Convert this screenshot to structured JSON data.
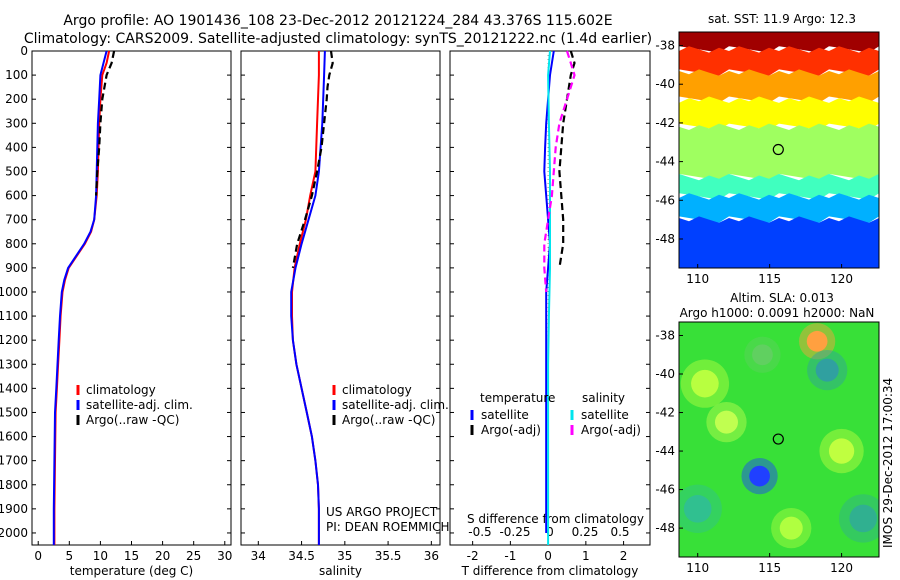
{
  "header": {
    "title_line1": "Argo profile: AO 1901436_108 23-Dec-2012 20121224_284 43.376S 115.602E",
    "title_line2": "Climatology: CARS2009. Satellite-adjusted climatology: synTS_20121222.nc (1.4d earlier)"
  },
  "colors": {
    "climatology": "#ff0000",
    "satellite": "#0000ff",
    "argo": "#000000",
    "salinity_satellite": "#00e5ee",
    "salinity_argo": "#ff00ff"
  },
  "depth_axis": {
    "ylim": [
      0,
      2050
    ],
    "ticks": [
      "0",
      "100",
      "200",
      "300",
      "400",
      "500",
      "600",
      "700",
      "800",
      "900",
      "1000",
      "1100",
      "1200",
      "1300",
      "1400",
      "1500",
      "1600",
      "1700",
      "1800",
      "1900",
      "2000"
    ]
  },
  "credits": {
    "project": "US ARGO PROJECT",
    "pi": "PI: DEAN ROEMMICH",
    "timestamp": "IMOS 29-Dec-2012 17:00:34"
  },
  "chart_data": [
    {
      "type": "line",
      "xlabel": "temperature (deg C)",
      "xlim": [
        -1,
        31
      ],
      "xticks": [
        "0",
        "5",
        "10",
        "15",
        "20",
        "25",
        "30"
      ],
      "legend": {
        "placement": "lower-center",
        "entries": [
          "climatology",
          "satellite-adj. clim.",
          "Argo(..raw -QC)"
        ]
      },
      "series": [
        {
          "name": "climatology",
          "color": "#ff0000",
          "x": [
            11.4,
            11.0,
            10.3,
            10.0,
            9.8,
            9.7,
            9.6,
            9.4,
            9.0,
            8.5,
            7.5,
            6.2,
            4.9,
            4.3,
            3.9,
            3.6,
            3.4,
            3.2,
            3.0,
            2.8,
            2.7,
            2.6,
            2.6
          ],
          "depth": [
            0,
            50,
            100,
            200,
            300,
            400,
            500,
            600,
            700,
            750,
            800,
            850,
            900,
            950,
            1000,
            1100,
            1200,
            1300,
            1400,
            1500,
            1700,
            1900,
            2050
          ]
        },
        {
          "name": "satellite-adj. clim.",
          "color": "#0000ff",
          "x": [
            11.0,
            10.5,
            10.0,
            9.8,
            9.6,
            9.5,
            9.4,
            9.3,
            9.0,
            8.4,
            7.4,
            6.1,
            4.8,
            4.2,
            3.8,
            3.5,
            3.3,
            3.1,
            2.9,
            2.7,
            2.6,
            2.5,
            2.5
          ],
          "depth": [
            0,
            50,
            100,
            200,
            300,
            400,
            500,
            600,
            700,
            750,
            800,
            850,
            900,
            950,
            1000,
            1100,
            1200,
            1300,
            1400,
            1500,
            1700,
            1900,
            2050
          ]
        },
        {
          "name": "Argo(..raw -QC)",
          "color": "#000000",
          "dashed": true,
          "x": [
            12.2,
            11.8,
            11.0,
            10.3,
            10.0,
            9.8,
            9.5,
            9.3
          ],
          "depth": [
            0,
            50,
            100,
            200,
            300,
            400,
            500,
            600
          ]
        }
      ]
    },
    {
      "type": "line",
      "xlabel": "salinity",
      "xlim": [
        33.8,
        36.1
      ],
      "xticks": [
        "34",
        "34.5",
        "35",
        "35.5",
        "36"
      ],
      "legend": {
        "placement": "lower-right",
        "entries": [
          "climatology",
          "satellite-adj. clim.",
          "Argo(..raw -QC)"
        ]
      },
      "series": [
        {
          "name": "climatology",
          "color": "#ff0000",
          "x": [
            34.7,
            34.7,
            34.68,
            34.66,
            34.6,
            34.55,
            34.48,
            34.42,
            34.39,
            34.39,
            34.4,
            34.44,
            34.5,
            34.56,
            34.62,
            34.66,
            34.69,
            34.7,
            34.7
          ],
          "depth": [
            0,
            100,
            300,
            500,
            600,
            700,
            800,
            900,
            1000,
            1100,
            1200,
            1300,
            1400,
            1500,
            1600,
            1700,
            1800,
            1900,
            2050
          ]
        },
        {
          "name": "satellite-adj. clim.",
          "color": "#0000ff",
          "x": [
            34.77,
            34.76,
            34.74,
            34.7,
            34.66,
            34.58,
            34.5,
            34.43,
            34.38,
            34.38,
            34.4,
            34.44,
            34.5,
            34.56,
            34.62,
            34.66,
            34.69,
            34.7,
            34.7
          ],
          "depth": [
            0,
            100,
            300,
            500,
            600,
            700,
            800,
            900,
            1000,
            1100,
            1200,
            1300,
            1400,
            1500,
            1600,
            1700,
            1800,
            1900,
            2050
          ]
        },
        {
          "name": "Argo(..raw -QC)",
          "color": "#000000",
          "dashed": true,
          "x": [
            34.84,
            34.86,
            34.82,
            34.8,
            34.79,
            34.76,
            34.73,
            34.68,
            34.62,
            34.54,
            34.45,
            34.4
          ],
          "depth": [
            0,
            50,
            100,
            150,
            200,
            300,
            400,
            500,
            600,
            700,
            800,
            900
          ]
        }
      ]
    },
    {
      "type": "line",
      "xlabel": "T difference from climatology",
      "xlim": [
        -2.6,
        2.7
      ],
      "xticks": [
        "-2",
        "-1",
        "0",
        "1",
        "2"
      ],
      "secondary_axis": {
        "label": "S difference from climatology",
        "ticks": [
          "-0.5",
          "-0.25",
          "0",
          "0.25",
          "0.5"
        ]
      },
      "legend": {
        "placement": "lower-center",
        "temperature_heading": "temperature",
        "salinity_heading": "salinity",
        "entries": [
          "satellite",
          "Argo(-adj)",
          "satellite",
          "Argo(-adj)"
        ]
      },
      "series": [
        {
          "name": "temperature satellite",
          "color": "#0000ff",
          "x": [
            0.15,
            0.1,
            0.05,
            0.0,
            -0.05,
            -0.08,
            -0.1,
            -0.05,
            0.0,
            0.05,
            0.0,
            -0.05,
            -0.05,
            -0.05,
            -0.05,
            -0.05,
            -0.05,
            -0.05
          ],
          "depth": [
            0,
            50,
            100,
            200,
            300,
            400,
            500,
            600,
            700,
            800,
            900,
            1000,
            1200,
            1400,
            1600,
            1800,
            1900,
            2000
          ]
        },
        {
          "name": "temperature Argo(-adj)",
          "color": "#000000",
          "dashed": true,
          "x": [
            0.6,
            0.7,
            0.6,
            0.5,
            0.4,
            0.35,
            0.3,
            0.35,
            0.4,
            0.4,
            0.35,
            0.3
          ],
          "depth": [
            0,
            50,
            100,
            200,
            300,
            400,
            500,
            600,
            700,
            800,
            850,
            900
          ]
        },
        {
          "name": "salinity satellite",
          "color": "#00e5ee",
          "x": [
            0.05,
            0.0,
            0.02,
            0.05,
            0.05,
            0.05,
            0.02,
            0.0,
            0.0,
            0.0,
            0.0,
            0.0
          ],
          "depth": [
            0,
            100,
            300,
            500,
            700,
            900,
            1100,
            1300,
            1500,
            1700,
            1900,
            2050
          ]
        },
        {
          "name": "salinity Argo(-adj)",
          "color": "#ff00ff",
          "dashed": true,
          "x": [
            0.5,
            0.6,
            0.7,
            0.6,
            0.5,
            0.3,
            0.2,
            0.1,
            0.0,
            -0.1,
            -0.1,
            -0.05
          ],
          "depth": [
            0,
            50,
            100,
            150,
            200,
            300,
            400,
            600,
            700,
            800,
            900,
            1000
          ]
        }
      ]
    },
    {
      "type": "heatmap",
      "title": "sat. SST: 11.9  Argo: 12.3",
      "xlim": [
        108.7,
        122.6
      ],
      "ylim": [
        -49.5,
        -37.3
      ],
      "xticks": [
        "110",
        "115",
        "120"
      ],
      "yticks": [
        "-38",
        "-40",
        "-42",
        "-44",
        "-46",
        "-48"
      ],
      "marker": {
        "lon": 115.602,
        "lat": -43.376
      },
      "palette": [
        "#00008f",
        "#0040ff",
        "#00b0ff",
        "#40ffbf",
        "#9fff60",
        "#ffff00",
        "#ffa000",
        "#ff3000",
        "#a00000"
      ],
      "lat_bands": [
        {
          "lat_from": -37.3,
          "lat_to": -38.2,
          "level": 8
        },
        {
          "lat_from": -38.2,
          "lat_to": -39.4,
          "level": 7
        },
        {
          "lat_from": -39.4,
          "lat_to": -40.8,
          "level": 6
        },
        {
          "lat_from": -40.8,
          "lat_to": -42.2,
          "level": 5
        },
        {
          "lat_from": -42.2,
          "lat_to": -44.8,
          "level": 4
        },
        {
          "lat_from": -44.8,
          "lat_to": -45.8,
          "level": 3
        },
        {
          "lat_from": -45.8,
          "lat_to": -47.0,
          "level": 2
        },
        {
          "lat_from": -47.0,
          "lat_to": -49.5,
          "level": 1
        }
      ]
    },
    {
      "type": "heatmap",
      "title": "Altim. SLA: 0.013",
      "subtitle": "Argo h1000: 0.0091 h2000: NaN",
      "xlim": [
        108.7,
        122.6
      ],
      "ylim": [
        -49.5,
        -37.3
      ],
      "xticks": [
        "110",
        "115",
        "120"
      ],
      "yticks": [
        "-38",
        "-40",
        "-42",
        "-44",
        "-46",
        "-48"
      ],
      "marker": {
        "lon": 115.602,
        "lat": -43.376
      },
      "background": "#38e038",
      "features": [
        {
          "lon": 118.3,
          "lat": -38.3,
          "r": 0.9,
          "color": "#ffa040"
        },
        {
          "lon": 114.3,
          "lat": -45.3,
          "r": 0.9,
          "color": "#2040ff"
        },
        {
          "lon": 119.0,
          "lat": -39.8,
          "r": 1.0,
          "color": "#30a0a0"
        },
        {
          "lon": 121.5,
          "lat": -47.5,
          "r": 1.2,
          "color": "#30b090"
        },
        {
          "lon": 110.5,
          "lat": -40.5,
          "r": 1.2,
          "color": "#b8ff40"
        },
        {
          "lon": 112.0,
          "lat": -42.5,
          "r": 1.0,
          "color": "#c0ff50"
        },
        {
          "lon": 116.5,
          "lat": -48.0,
          "r": 1.0,
          "color": "#b0ff40"
        },
        {
          "lon": 110.0,
          "lat": -47.0,
          "r": 1.2,
          "color": "#30c090"
        },
        {
          "lon": 120.0,
          "lat": -44.0,
          "r": 1.1,
          "color": "#c0ff40"
        },
        {
          "lon": 114.5,
          "lat": -39.0,
          "r": 0.9,
          "color": "#60d060"
        }
      ]
    }
  ]
}
